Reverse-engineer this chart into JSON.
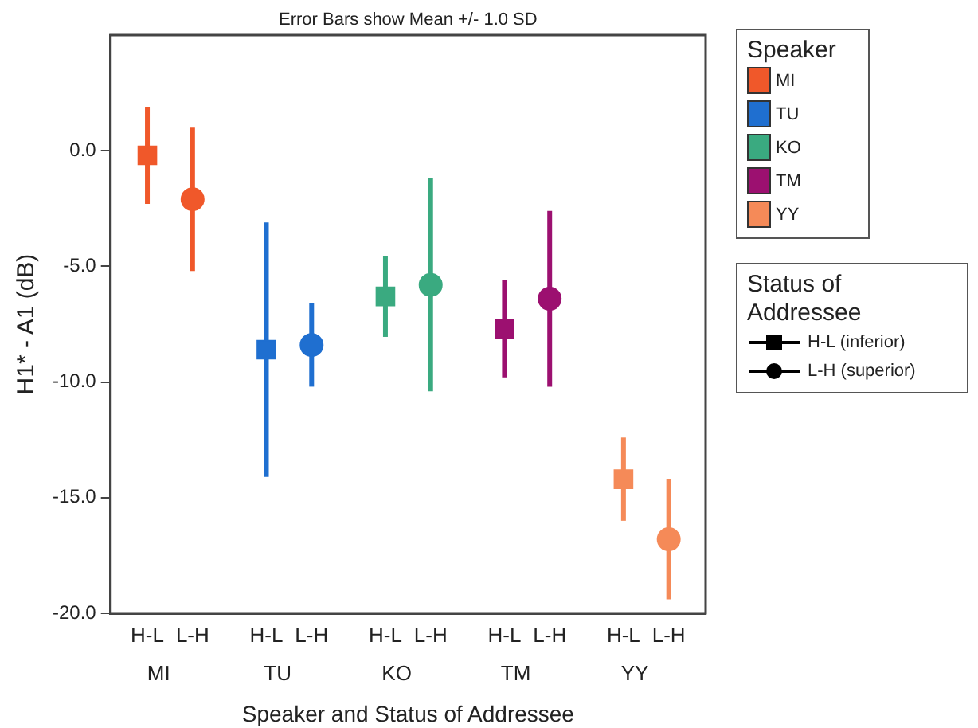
{
  "chart_data": {
    "type": "scatter",
    "title": "Error Bars show Mean +/- 1.0 SD",
    "xlabel": "Speaker and Status of Addressee",
    "ylabel": "H1* - A1 (dB)",
    "legend_title": "Speaker",
    "categories": [
      "MI",
      "TU",
      "KO",
      "TM",
      "YY"
    ],
    "series": [
      {
        "name": "H-L (inferior)",
        "marker": "square",
        "colors": [
          "#f0582a",
          "#1f6fd0",
          "#3aaa80",
          "#9c1070",
          "#f58a58"
        ],
        "values": [
          -0.2,
          -8.6,
          -6.3,
          -7.7,
          -14.2
        ],
        "errors": [
          2.1,
          5.5,
          1.75,
          2.1,
          1.8
        ]
      },
      {
        "name": "L-H (superior)",
        "marker": "circle",
        "colors": [
          "#f0582a",
          "#1f6fd0",
          "#3aaa80",
          "#9c1070",
          "#f58a58"
        ],
        "values": [
          -2.1,
          -8.4,
          -5.8,
          -6.4,
          -16.8
        ],
        "errors": [
          3.1,
          1.8,
          4.6,
          3.8,
          2.6
        ]
      }
    ],
    "ylim": [
      -20,
      5
    ],
    "yticks": [
      {
        "value": 0,
        "label": "0.0"
      },
      {
        "value": -5,
        "label": "-5.0"
      },
      {
        "value": -10,
        "label": "-10.0"
      },
      {
        "value": -15,
        "label": "-15.0"
      },
      {
        "value": -20,
        "label": "-20.0"
      }
    ],
    "grid": false,
    "legend": "right",
    "annotations": [
      "H-L",
      "L-H",
      "H-L",
      "L-H",
      "H-L",
      "L-H",
      "H-L",
      "L-H",
      "H-L",
      "L-H",
      "Status of Addressee"
    ]
  }
}
